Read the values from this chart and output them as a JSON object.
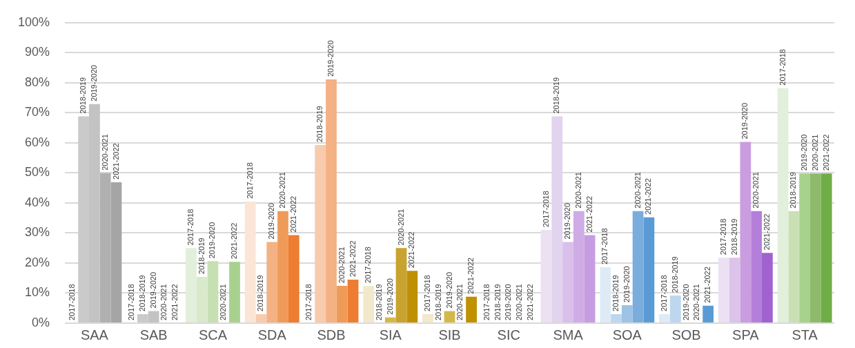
{
  "chart_data": {
    "type": "bar",
    "categories": [
      "SAA",
      "SAB",
      "SCA",
      "SDA",
      "SDB",
      "SIA",
      "SIB",
      "SIC",
      "SMA",
      "SOA",
      "SOB",
      "SPA",
      "STA"
    ],
    "series": [
      {
        "name": "2017-2018",
        "values": [
          0,
          0,
          25,
          40.5,
          0,
          12.4,
          3,
          0,
          31,
          18.6,
          3,
          21.8,
          78.2
        ],
        "colors": [
          "#d9d9d9",
          "#d9d9d9",
          "#e2efda",
          "#fbe5d6",
          "#fbe5d6",
          "#f2e9cc",
          "#f2e9cc",
          "#deebf7",
          "#ece0f3",
          "#deebf7",
          "#deebf7",
          "#ece0f3",
          "#e2efda"
        ]
      },
      {
        "name": "2018-2019",
        "values": [
          68.8,
          3,
          15.4,
          3,
          59.3,
          0,
          0,
          0,
          68.8,
          3,
          9.2,
          21.8,
          37.3
        ],
        "colors": [
          "#cacaca",
          "#cacaca",
          "#d8e9cc",
          "#f8cbad",
          "#f8cbad",
          "#e2cf8a",
          "#e2cf8a",
          "#bdd7ee",
          "#e2d3ef",
          "#bdd7ee",
          "#bdd7ee",
          "#dcc3ea",
          "#c9e0b5"
        ]
      },
      {
        "name": "2019-2020",
        "values": [
          72.9,
          4,
          20.6,
          27,
          81.1,
          1.9,
          4,
          0,
          27,
          6,
          0,
          60.3,
          49.8
        ],
        "colors": [
          "#c3c3c3",
          "#c3c3c3",
          "#c6e0b4",
          "#f4b183",
          "#f4b183",
          "#d4b84a",
          "#d4b84a",
          "#9dc3e6",
          "#d9bfe9",
          "#9dc3e6",
          "#9dc3e6",
          "#c99de0",
          "#a9d18e"
        ]
      },
      {
        "name": "2020-2021",
        "values": [
          49.9,
          0,
          0,
          37.3,
          12.4,
          25,
          0,
          0,
          37.3,
          37.3,
          0,
          37.3,
          49.8
        ],
        "colors": [
          "#b0b0b0",
          "#b0b0b0",
          "#b3d699",
          "#f09a5a",
          "#f09a5a",
          "#c9a32f",
          "#c9a32f",
          "#7aaddb",
          "#cfacE5",
          "#7aaddb",
          "#7aaddb",
          "#b47fd9",
          "#8dbb6a"
        ]
      },
      {
        "name": "2021-2022",
        "values": [
          46.9,
          0,
          20.4,
          29.3,
          14.5,
          17.4,
          8.8,
          0,
          29.3,
          35.2,
          5.8,
          23.4,
          49.8
        ],
        "colors": [
          "#a5a5a5",
          "#a5a5a5",
          "#a9d18e",
          "#ed7d31",
          "#ed7d31",
          "#bf9000",
          "#bf9000",
          "#5b9bd5",
          "#c79ce2",
          "#5b9bd5",
          "#5b9bd5",
          "#a162cf",
          "#70ad47"
        ]
      }
    ],
    "ylim": [
      0,
      100
    ],
    "yticks": [
      {
        "value": 0,
        "label": "0%"
      },
      {
        "value": 10,
        "label": "10%"
      },
      {
        "value": 20,
        "label": "20%"
      },
      {
        "value": 30,
        "label": "30%"
      },
      {
        "value": 40,
        "label": "40%"
      },
      {
        "value": 50,
        "label": "50%"
      },
      {
        "value": 60,
        "label": "60%"
      },
      {
        "value": 70,
        "label": "70%"
      },
      {
        "value": 80,
        "label": "80%"
      },
      {
        "value": 90,
        "label": "90%"
      },
      {
        "value": 100,
        "label": "100%"
      }
    ],
    "grid": "y",
    "legend": false
  }
}
